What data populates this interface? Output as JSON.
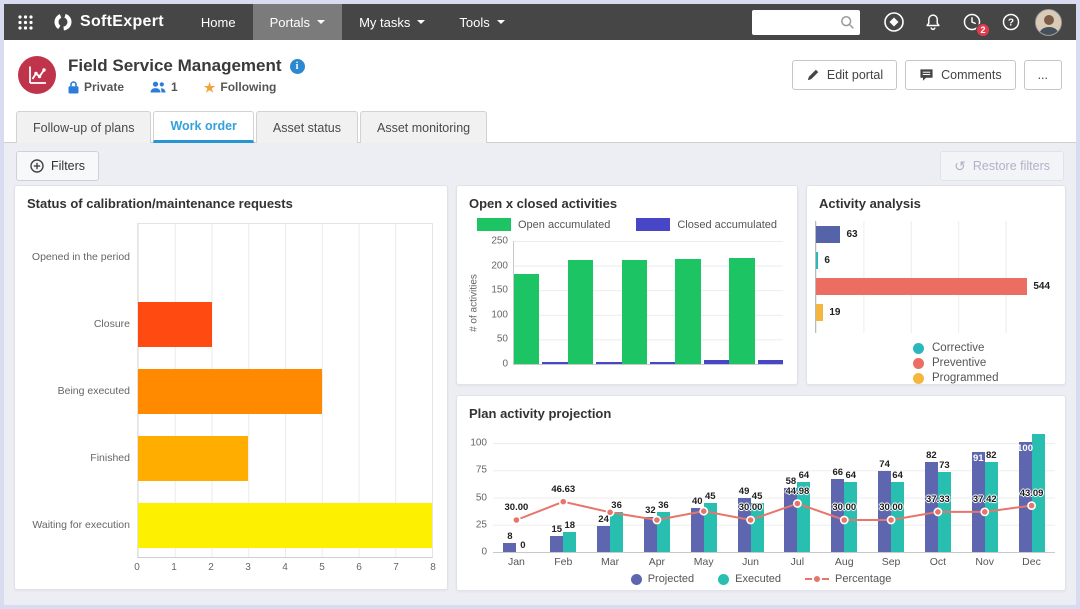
{
  "navbar": {
    "brand": "SoftExpert",
    "items": [
      {
        "label": "Home",
        "active": false,
        "dropdown": false
      },
      {
        "label": "Portals",
        "active": true,
        "dropdown": true
      },
      {
        "label": "My tasks",
        "active": false,
        "dropdown": true
      },
      {
        "label": "Tools",
        "active": false,
        "dropdown": true
      }
    ],
    "search_value": "",
    "notification_badge": "2"
  },
  "header": {
    "title": "Field Service Management",
    "privacy_label": "Private",
    "members_count": "1",
    "following_label": "Following",
    "edit_portal_label": "Edit portal",
    "comments_label": "Comments",
    "more_label": "..."
  },
  "tabs": [
    {
      "label": "Follow-up of plans",
      "active": false
    },
    {
      "label": "Work order",
      "active": true
    },
    {
      "label": "Asset status",
      "active": false
    },
    {
      "label": "Asset monitoring",
      "active": false
    }
  ],
  "filters": {
    "filters_label": "Filters",
    "restore_label": "Restore filters"
  },
  "colors": {
    "accent_blue": "#2d9fd8",
    "star_orange": "#f2a43a",
    "badge_red": "#e23b4e",
    "portal_icon_red": "#c0344b",
    "navbar_bg": "#464646"
  },
  "chart_data": [
    {
      "id": "status_requests",
      "type": "bar",
      "orientation": "horizontal",
      "title": "Status of calibration/maintenance requests",
      "categories": [
        "Opened in the period",
        "Closure",
        "Being executed",
        "Finished",
        "Waiting for execution"
      ],
      "values": [
        0,
        2,
        5,
        3,
        8
      ],
      "bar_colors": [
        "",
        "#ff4b12",
        "#ff8a00",
        "#ffae00",
        "#fdf000"
      ],
      "xlim": [
        0,
        8
      ],
      "x_ticks": [
        0,
        1,
        2,
        3,
        4,
        5,
        6,
        7,
        8
      ],
      "grid": true
    },
    {
      "id": "open_closed_activities",
      "type": "bar",
      "title": "Open x closed activities",
      "ylabel": "# of activities",
      "ylim": [
        0,
        250
      ],
      "y_ticks": [
        0,
        50,
        100,
        150,
        200,
        250
      ],
      "categories": [
        "",
        "",
        "",
        "",
        ""
      ],
      "legend_position": "top",
      "series": [
        {
          "name": "Open accumulated",
          "color": "#1dc463",
          "values": [
            182,
            212,
            212,
            214,
            215
          ]
        },
        {
          "name": "Closed accumulated",
          "color": "#4646c6",
          "values": [
            5,
            5,
            5,
            8,
            8
          ]
        }
      ],
      "grid": true
    },
    {
      "id": "activity_analysis",
      "type": "bar",
      "orientation": "horizontal",
      "title": "Activity analysis",
      "bars": [
        {
          "value": 63,
          "label": "63",
          "color": "#5563a8"
        },
        {
          "value": 6,
          "label": "6",
          "color": "#2ab7bd"
        },
        {
          "value": 544,
          "label": "544",
          "color": "#ec6e62"
        },
        {
          "value": 19,
          "label": "19",
          "color": "#f5b63e"
        }
      ],
      "xlim": [
        0,
        610
      ],
      "legend": [
        {
          "label": "Corrective",
          "color": "#2ab7bd"
        },
        {
          "label": "Preventive",
          "color": "#ec6e62"
        },
        {
          "label": "Programmed",
          "color": "#f5b63e"
        }
      ],
      "legend_position": "bottom",
      "grid": true
    },
    {
      "id": "plan_activity_projection",
      "type": "bar+line",
      "title": "Plan activity projection",
      "categories": [
        "Jan",
        "Feb",
        "Mar",
        "Apr",
        "May",
        "Jun",
        "Jul",
        "Aug",
        "Sep",
        "Oct",
        "Nov",
        "Dec"
      ],
      "ylim": [
        0,
        100
      ],
      "y_ticks": [
        0,
        25,
        50,
        75,
        100
      ],
      "legend_position": "bottom",
      "series": [
        {
          "name": "Projected",
          "type": "bar",
          "color": "#5d66ae",
          "values": [
            8,
            15,
            24,
            32,
            40,
            49,
            58,
            66,
            74,
            82,
            91,
            100
          ],
          "labels": [
            "8",
            "15",
            "24",
            "32",
            "40",
            "49",
            "58",
            "66",
            "74",
            "82",
            "91",
            "100"
          ]
        },
        {
          "name": "Executed",
          "type": "bar",
          "color": "#28bfb1",
          "values": [
            0,
            18,
            36,
            36,
            45,
            45,
            64,
            64,
            64,
            73,
            82,
            107
          ],
          "labels": [
            "0",
            "18",
            "36",
            "36",
            "45",
            "45",
            "64",
            "64",
            "64",
            "73",
            "82",
            ""
          ]
        },
        {
          "name": "Percentage",
          "type": "line",
          "color": "#e8756a",
          "values": [
            30.0,
            46.63,
            37.0,
            30.0,
            38.0,
            30.0,
            44.98,
            30.0,
            30.0,
            37.33,
            37.42,
            43.09
          ],
          "labels": [
            "30.00",
            "46.63",
            "",
            "",
            "",
            "30.00",
            "44.98",
            "30.00",
            "30.00",
            "37.33",
            "37.42",
            "43.09"
          ]
        }
      ],
      "grid": true
    }
  ]
}
